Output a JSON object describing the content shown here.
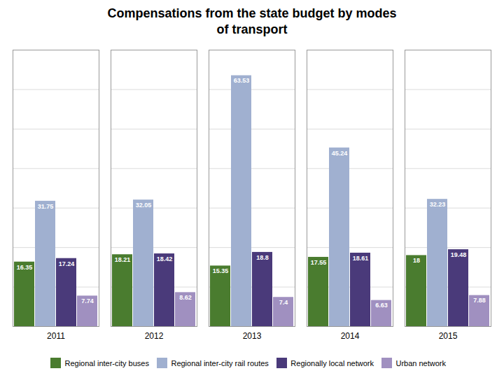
{
  "chart_data": {
    "type": "bar",
    "title": "Compensations from the state budget by modes\nof transport",
    "categories": [
      "2011",
      "2012",
      "2013",
      "2014",
      "2015"
    ],
    "series": [
      {
        "name": "Regional inter-city buses",
        "color": "#4a7c2f",
        "values": [
          16.35,
          18.21,
          15.35,
          17.55,
          18
        ]
      },
      {
        "name": "Regional inter-city rail routes",
        "color": "#a0b0d0",
        "values": [
          31.75,
          32.05,
          63.53,
          45.24,
          32.23
        ]
      },
      {
        "name": "Regionally local network",
        "color": "#4a3a7a",
        "values": [
          17.24,
          18.42,
          18.8,
          18.61,
          19.48
        ]
      },
      {
        "name": "Urban network",
        "color": "#a090c0",
        "values": [
          7.74,
          8.62,
          7.4,
          6.63,
          7.88
        ]
      }
    ],
    "ylim": [
      0,
      70
    ],
    "yticks": [
      10,
      20,
      30,
      40,
      50,
      60
    ],
    "grid": true,
    "legend": "bottom",
    "data_labels": true,
    "tick_labels": "x"
  }
}
